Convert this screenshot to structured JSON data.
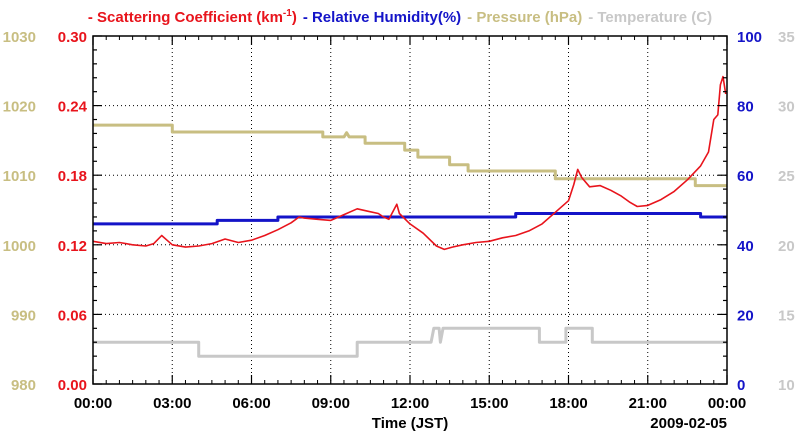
{
  "chart_data": {
    "type": "line",
    "title": "",
    "date_label": "2009-02-05",
    "xlabel": "Time (JST)",
    "x_unit": "hours since 00:00",
    "x_range": [
      0,
      24
    ],
    "x_ticks": [
      0,
      3,
      6,
      9,
      12,
      15,
      18,
      21,
      24
    ],
    "x_tick_labels": [
      "00:00",
      "03:00",
      "06:00",
      "09:00",
      "12:00",
      "15:00",
      "18:00",
      "21:00",
      "00:00"
    ],
    "grid": true,
    "legend": {
      "placement": "top",
      "entries": [
        {
          "prefix": "- ",
          "text": "Scattering Coefficient (km",
          "sup": "-1",
          "suffix": ")",
          "color": "#e8141c"
        },
        {
          "prefix": "- ",
          "text": "Relative Humidity(%)",
          "sup": "",
          "suffix": "",
          "color": "#1414c8"
        },
        {
          "prefix": "- ",
          "text": "Pressure (hPa)",
          "sup": "",
          "suffix": "",
          "color": "#c8be82"
        },
        {
          "prefix": "- ",
          "text": "Temperature (C)",
          "sup": "",
          "suffix": "",
          "color": "#c8c8c8"
        }
      ]
    },
    "axes": {
      "pressure": {
        "side": "left-outer",
        "color": "#c8be82",
        "range": [
          980,
          1030
        ],
        "ticks": [
          980,
          990,
          1000,
          1010,
          1020,
          1030
        ],
        "tick_labels": [
          "980",
          "990",
          "1000",
          "1010",
          "1020",
          "1030"
        ]
      },
      "scattering": {
        "side": "left-inner",
        "color": "#e8141c",
        "range": [
          0,
          0.3
        ],
        "ticks": [
          0,
          0.06,
          0.12,
          0.18,
          0.24,
          0.3
        ],
        "tick_labels": [
          "0.00",
          "0.06",
          "0.12",
          "0.18",
          "0.24",
          "0.30"
        ]
      },
      "humidity": {
        "side": "right-inner",
        "color": "#1414c8",
        "range": [
          0,
          100
        ],
        "ticks": [
          0,
          20,
          40,
          60,
          80,
          100
        ],
        "tick_labels": [
          "0",
          "20",
          "40",
          "60",
          "80",
          "100"
        ]
      },
      "temperature": {
        "side": "right-outer",
        "color": "#c8c8c8",
        "range": [
          10,
          35
        ],
        "ticks": [
          10,
          15,
          20,
          25,
          30,
          35
        ],
        "tick_labels": [
          "10",
          "15",
          "20",
          "25",
          "30",
          "35"
        ]
      }
    },
    "series": [
      {
        "name": "Scattering Coefficient",
        "axis": "scattering",
        "color": "#e8141c",
        "points": [
          [
            0,
            0.123
          ],
          [
            0.5,
            0.121
          ],
          [
            1,
            0.122
          ],
          [
            1.5,
            0.12
          ],
          [
            2,
            0.119
          ],
          [
            2.3,
            0.121
          ],
          [
            2.6,
            0.128
          ],
          [
            2.8,
            0.124
          ],
          [
            3,
            0.12
          ],
          [
            3.5,
            0.118
          ],
          [
            4,
            0.119
          ],
          [
            4.5,
            0.121
          ],
          [
            5,
            0.125
          ],
          [
            5.5,
            0.122
          ],
          [
            6,
            0.124
          ],
          [
            6.5,
            0.128
          ],
          [
            7,
            0.133
          ],
          [
            7.5,
            0.139
          ],
          [
            7.8,
            0.144
          ],
          [
            8,
            0.143
          ],
          [
            8.5,
            0.142
          ],
          [
            9,
            0.141
          ],
          [
            9.5,
            0.146
          ],
          [
            10,
            0.151
          ],
          [
            10.4,
            0.149
          ],
          [
            10.8,
            0.147
          ],
          [
            11,
            0.144
          ],
          [
            11.2,
            0.142
          ],
          [
            11.5,
            0.155
          ],
          [
            11.6,
            0.147
          ],
          [
            12,
            0.138
          ],
          [
            12.5,
            0.13
          ],
          [
            13,
            0.119
          ],
          [
            13.3,
            0.116
          ],
          [
            13.6,
            0.118
          ],
          [
            14,
            0.12
          ],
          [
            14.5,
            0.122
          ],
          [
            15,
            0.123
          ],
          [
            15.5,
            0.126
          ],
          [
            16,
            0.128
          ],
          [
            16.5,
            0.132
          ],
          [
            17,
            0.138
          ],
          [
            17.5,
            0.148
          ],
          [
            18,
            0.158
          ],
          [
            18.2,
            0.172
          ],
          [
            18.35,
            0.185
          ],
          [
            18.5,
            0.178
          ],
          [
            18.8,
            0.17
          ],
          [
            19.2,
            0.171
          ],
          [
            19.6,
            0.167
          ],
          [
            20,
            0.162
          ],
          [
            20.3,
            0.157
          ],
          [
            20.6,
            0.153
          ],
          [
            21,
            0.154
          ],
          [
            21.5,
            0.159
          ],
          [
            22,
            0.166
          ],
          [
            22.5,
            0.176
          ],
          [
            23,
            0.188
          ],
          [
            23.3,
            0.2
          ],
          [
            23.5,
            0.228
          ],
          [
            23.65,
            0.232
          ],
          [
            23.75,
            0.258
          ],
          [
            23.85,
            0.265
          ],
          [
            23.95,
            0.25
          ]
        ]
      },
      {
        "name": "Relative Humidity",
        "axis": "humidity",
        "color": "#1414c8",
        "points": [
          [
            0,
            46
          ],
          [
            4.7,
            46
          ],
          [
            4.7,
            47
          ],
          [
            7,
            47
          ],
          [
            7,
            48
          ],
          [
            16,
            48
          ],
          [
            16,
            49
          ],
          [
            23,
            49
          ],
          [
            23,
            48
          ],
          [
            24,
            48
          ]
        ]
      },
      {
        "name": "Pressure",
        "axis": "pressure",
        "color": "#c8be82",
        "points": [
          [
            0,
            1017.2
          ],
          [
            3,
            1017.2
          ],
          [
            3,
            1016.2
          ],
          [
            8.7,
            1016.2
          ],
          [
            8.7,
            1015.5
          ],
          [
            9.5,
            1015.5
          ],
          [
            9.6,
            1016.1
          ],
          [
            9.7,
            1015.5
          ],
          [
            10.3,
            1015.5
          ],
          [
            10.3,
            1014.6
          ],
          [
            11.8,
            1014.6
          ],
          [
            11.8,
            1013.6
          ],
          [
            12.3,
            1013.6
          ],
          [
            12.3,
            1012.6
          ],
          [
            13.5,
            1012.6
          ],
          [
            13.5,
            1011.5
          ],
          [
            14.2,
            1011.5
          ],
          [
            14.2,
            1010.6
          ],
          [
            17.5,
            1010.6
          ],
          [
            17.5,
            1009.5
          ],
          [
            22.8,
            1009.5
          ],
          [
            22.8,
            1008.5
          ],
          [
            24,
            1008.5
          ]
        ]
      },
      {
        "name": "Temperature",
        "axis": "temperature",
        "color": "#c8c8c8",
        "points": [
          [
            0,
            13
          ],
          [
            4,
            13
          ],
          [
            4,
            12
          ],
          [
            10,
            12
          ],
          [
            10,
            13
          ],
          [
            12.8,
            13
          ],
          [
            12.9,
            14
          ],
          [
            13.1,
            14
          ],
          [
            13.15,
            13
          ],
          [
            13.25,
            14
          ],
          [
            16.9,
            14
          ],
          [
            16.9,
            13
          ],
          [
            17.9,
            13
          ],
          [
            17.9,
            14
          ],
          [
            18.9,
            14
          ],
          [
            18.9,
            13
          ],
          [
            24,
            13
          ]
        ]
      }
    ]
  }
}
